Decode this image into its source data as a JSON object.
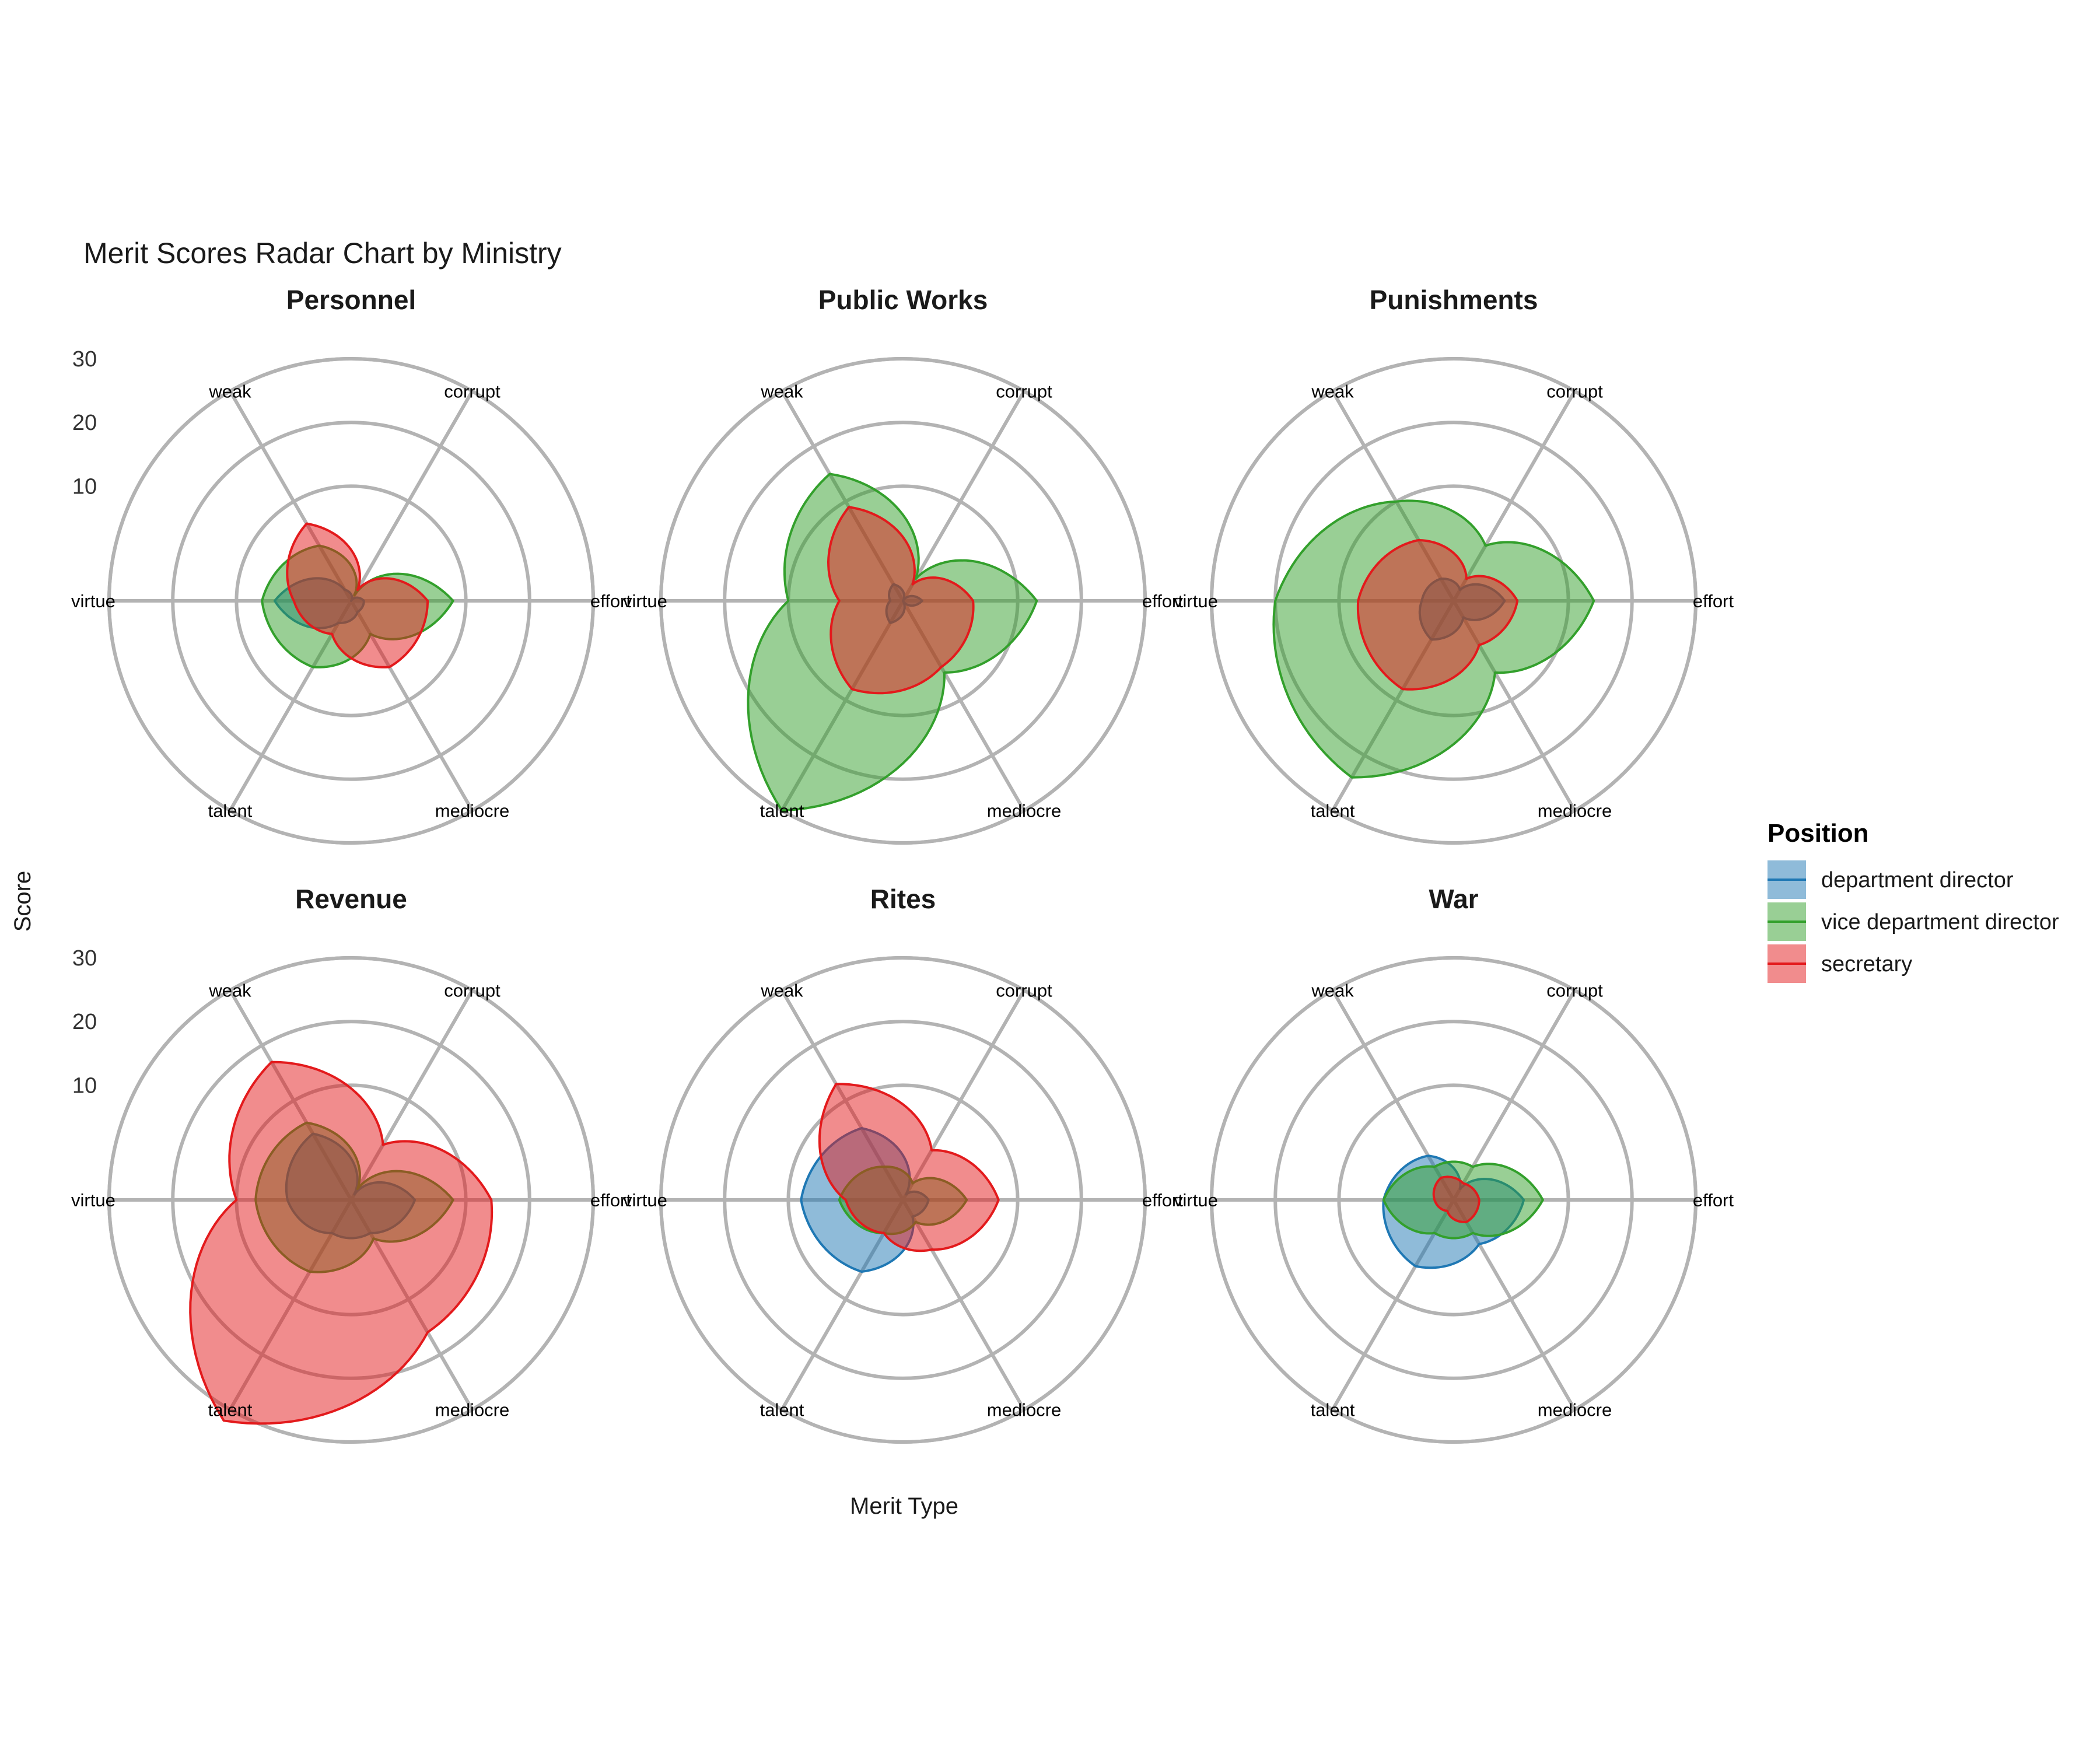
{
  "chart_data": {
    "type": "radar",
    "title": "Merit Scores Radar Chart by Ministry",
    "xlabel": "Merit Type",
    "ylabel": "Score",
    "radial_ticks": [
      10,
      20,
      30
    ],
    "rlim": [
      -8,
      30
    ],
    "axes": [
      "effort",
      "corrupt",
      "weak",
      "virtue",
      "talent",
      "mediocre"
    ],
    "legend": {
      "title": "Position",
      "placement": "right",
      "entries": [
        "department director",
        "vice department director",
        "secretary"
      ]
    },
    "colors": {
      "department director": "#1F78B4",
      "vice department director": "#33A02C",
      "secretary": "#E31A1C"
    },
    "facets": [
      {
        "title": "Personnel",
        "series": [
          {
            "name": "department director",
            "values": [
              -6,
              -8,
              -6,
              4,
              -4,
              -6
            ]
          },
          {
            "name": "vice department director",
            "values": [
              8,
              -7,
              2,
              6,
              4,
              -2
            ]
          },
          {
            "name": "secretary",
            "values": [
              4,
              -6,
              6,
              1,
              -2,
              4
            ]
          }
        ]
      },
      {
        "title": "Public Works",
        "series": [
          {
            "name": "department director",
            "values": [
              -5,
              -8,
              -5,
              -6,
              -4,
              -8
            ]
          },
          {
            "name": "vice department director",
            "values": [
              13,
              -4,
              15,
              10,
              30,
              5
            ]
          },
          {
            "name": "secretary",
            "values": [
              3,
              -5,
              9,
              2,
              8,
              4
            ]
          }
        ]
      },
      {
        "title": "Punishments",
        "series": [
          {
            "name": "department director",
            "values": [
              0,
              -6,
              -4,
              -3,
              -1,
              -5
            ]
          },
          {
            "name": "vice department director",
            "values": [
              14,
              2,
              10,
              20,
              24,
              5
            ]
          },
          {
            "name": "secretary",
            "values": [
              2,
              -4,
              3,
              7,
              8,
              0
            ]
          }
        ]
      },
      {
        "title": "Revenue",
        "series": [
          {
            "name": "department director",
            "values": [
              2,
              -7,
              4,
              2,
              -2,
              -2
            ]
          },
          {
            "name": "vice department director",
            "values": [
              8,
              -6,
              6,
              7,
              5,
              -1
            ]
          },
          {
            "name": "secretary",
            "values": [
              14,
              2,
              17,
              10,
              32,
              16
            ]
          }
        ]
      },
      {
        "title": "Rites",
        "series": [
          {
            "name": "department director",
            "values": [
              -4,
              -7,
              5,
              8,
              5,
              -5
            ]
          },
          {
            "name": "vice department director",
            "values": [
              2,
              -5,
              -2,
              2,
              -2,
              -4
            ]
          },
          {
            "name": "secretary",
            "values": [
              7,
              1,
              13,
              1,
              -2,
              1
            ]
          }
        ]
      },
      {
        "title": "War",
        "series": [
          {
            "name": "department director",
            "values": [
              3,
              -6,
              0,
              3,
              4,
              0
            ]
          },
          {
            "name": "vice department director",
            "values": [
              6,
              -2,
              -2,
              3,
              -2,
              -2
            ]
          },
          {
            "name": "secretary",
            "values": [
              -4,
              -5,
              -4,
              -5,
              -6,
              -4
            ]
          }
        ]
      }
    ]
  }
}
